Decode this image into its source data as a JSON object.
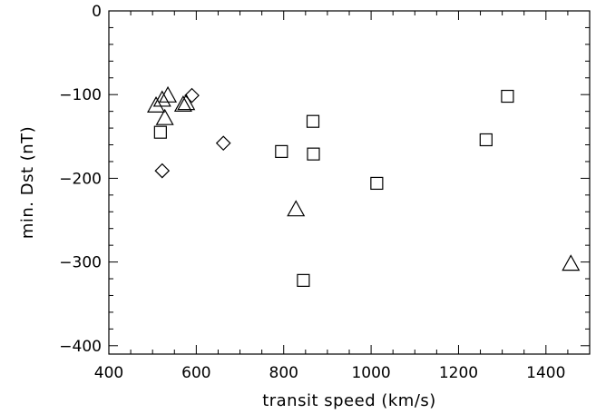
{
  "chart_data": {
    "type": "scatter",
    "title": "",
    "xlabel": "transit speed (km/s)",
    "ylabel": "min. Dst (nT)",
    "xlim": [
      400,
      1500
    ],
    "ylim": [
      -410,
      0
    ],
    "x_ticks": [
      400,
      600,
      800,
      1000,
      1200,
      1400
    ],
    "y_ticks": [
      0,
      -100,
      -200,
      -300,
      -400
    ],
    "x_tick_labels": [
      "400",
      "600",
      "800",
      "1000",
      "1200",
      "1400"
    ],
    "y_tick_labels": [
      "0",
      "−100",
      "−200",
      "−300",
      "−400"
    ],
    "grid": false,
    "series": [
      {
        "marker": "triangle",
        "points": [
          [
            508,
            -113
          ],
          [
            522,
            -106
          ],
          [
            535,
            -101
          ],
          [
            528,
            -128
          ],
          [
            570,
            -112
          ],
          [
            577,
            -110
          ],
          [
            828,
            -237
          ],
          [
            1457,
            -302
          ]
        ]
      },
      {
        "marker": "diamond",
        "points": [
          [
            590,
            -101
          ],
          [
            522,
            -191
          ],
          [
            662,
            -158
          ]
        ]
      },
      {
        "marker": "square",
        "points": [
          [
            518,
            -145
          ],
          [
            795,
            -168
          ],
          [
            867,
            -132
          ],
          [
            868,
            -171
          ],
          [
            845,
            -322
          ],
          [
            1013,
            -206
          ],
          [
            1263,
            -154
          ],
          [
            1312,
            -102
          ]
        ]
      }
    ]
  }
}
